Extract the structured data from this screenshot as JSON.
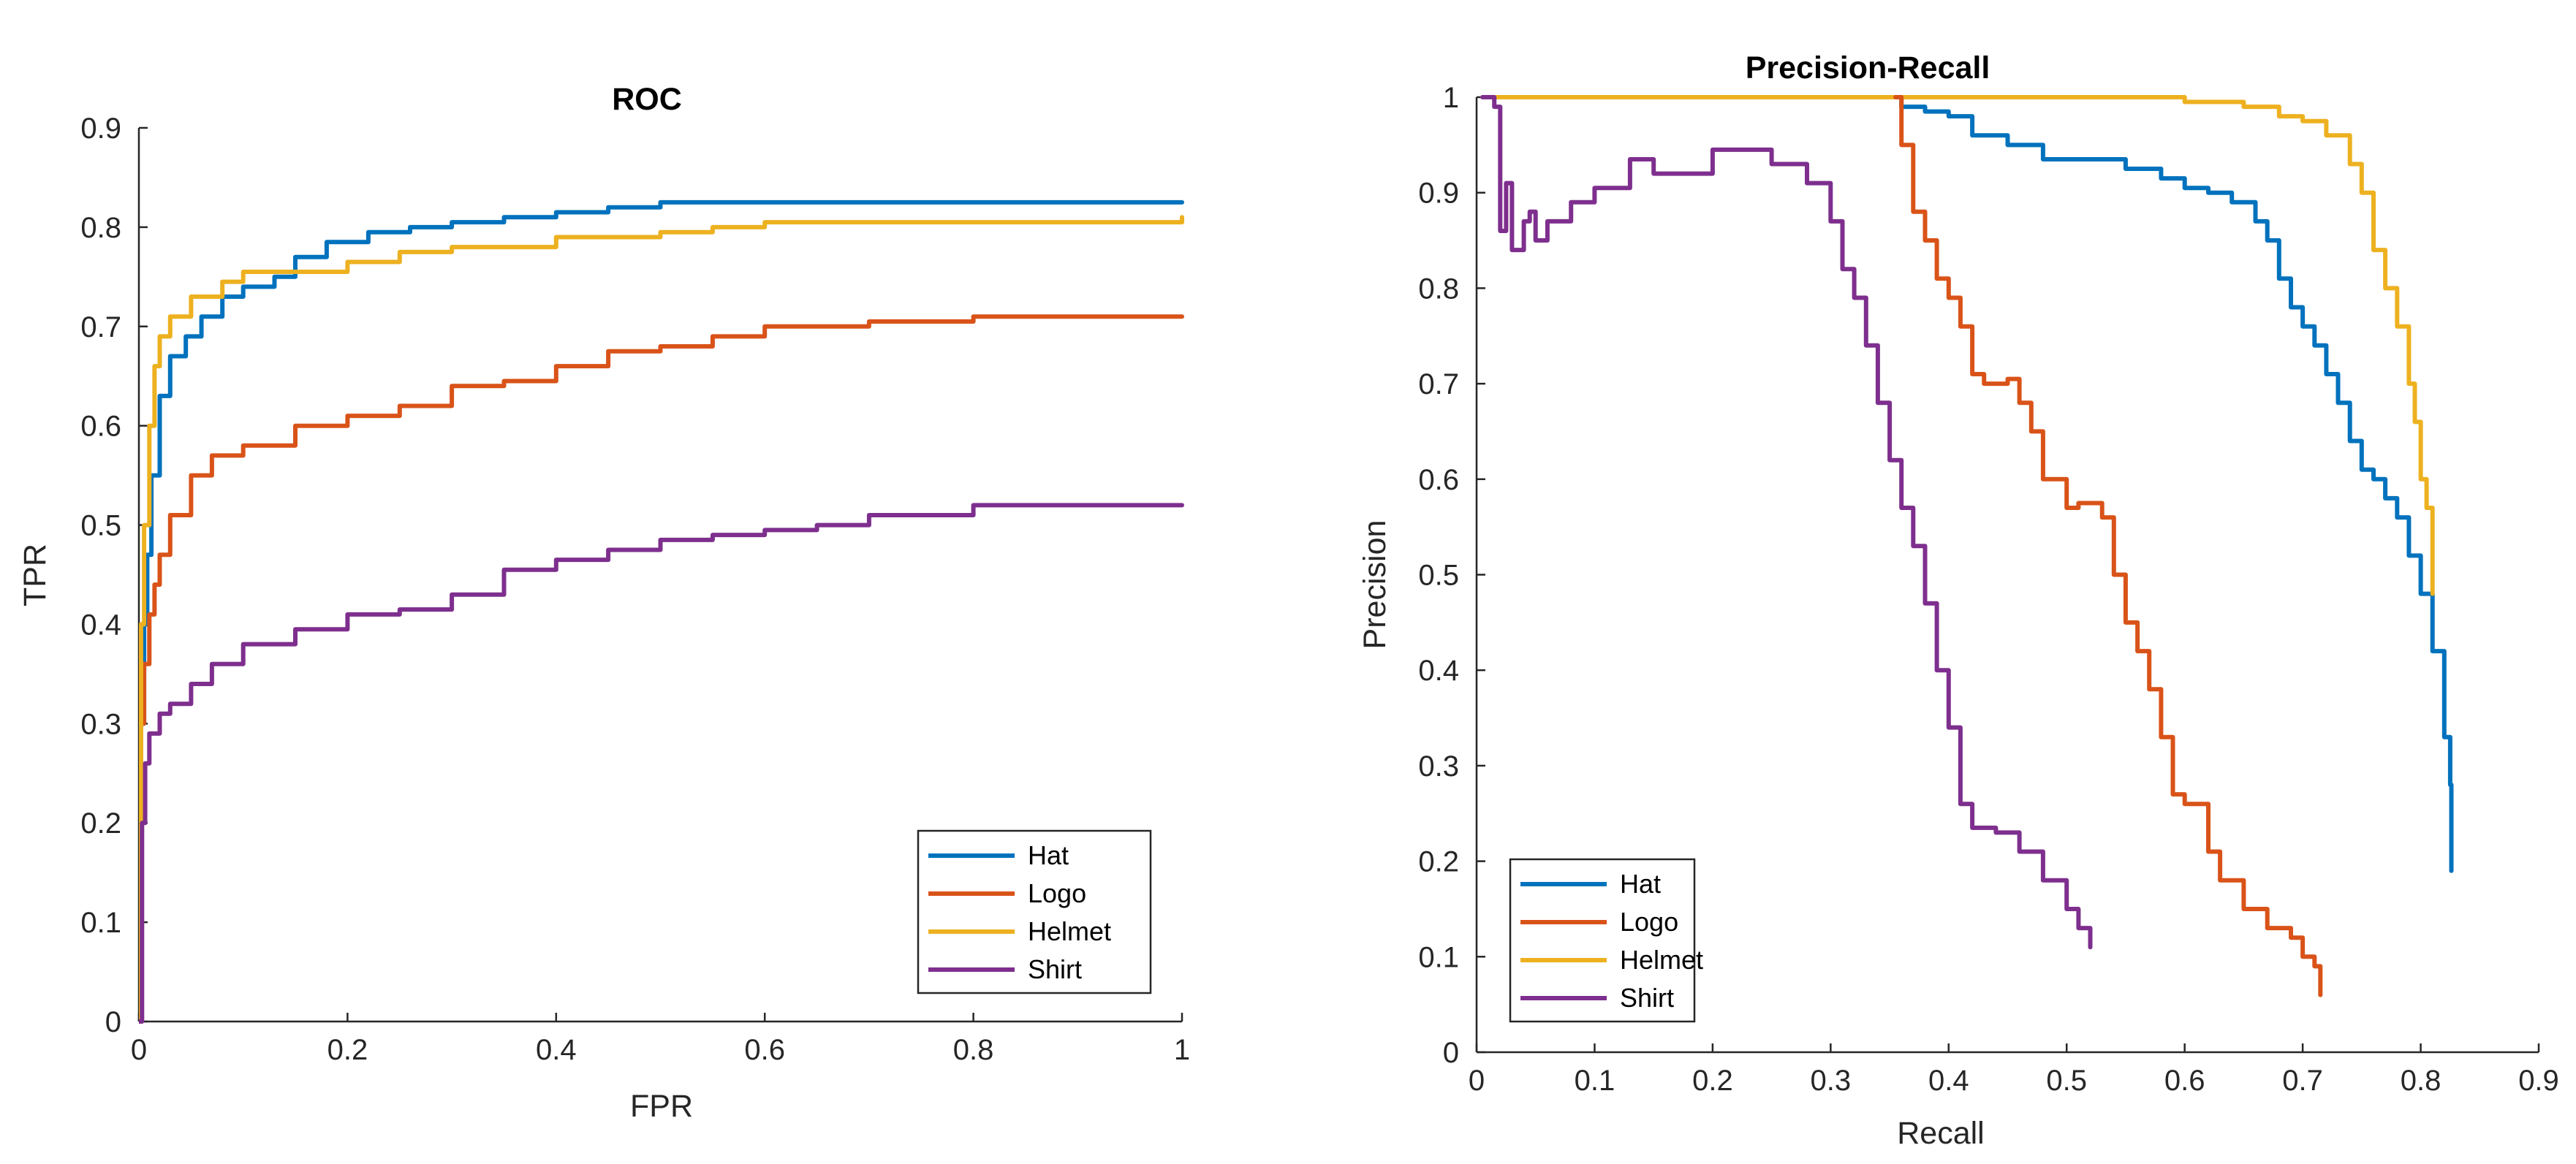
{
  "chart_data": [
    {
      "type": "line",
      "title": "ROC",
      "xlabel": "FPR",
      "ylabel": "TPR",
      "xlim": [
        0,
        1
      ],
      "ylim": [
        0,
        0.9
      ],
      "xticks": [
        0,
        0.2,
        0.4,
        0.6,
        0.8,
        1
      ],
      "xtick_labels": [
        "0",
        "0.2",
        "0.4",
        "0.6",
        "0.8",
        "1"
      ],
      "yticks": [
        0,
        0.1,
        0.2,
        0.3,
        0.4,
        0.5,
        0.6,
        0.7,
        0.8,
        0.9
      ],
      "ytick_labels": [
        "0",
        "0.1",
        "0.2",
        "0.3",
        "0.4",
        "0.5",
        "0.6",
        "0.7",
        "0.8",
        "0.9"
      ],
      "legend_position": "bottom-right",
      "grid": false,
      "series": [
        {
          "name": "Hat",
          "color": "#0072BD",
          "x": [
            0,
            0.002,
            0.005,
            0.008,
            0.012,
            0.02,
            0.03,
            0.045,
            0.06,
            0.08,
            0.1,
            0.13,
            0.15,
            0.18,
            0.22,
            0.26,
            0.3,
            0.35,
            0.4,
            0.45,
            0.5,
            0.6,
            0.7,
            0.8,
            0.9,
            1.0
          ],
          "y": [
            0,
            0.3,
            0.4,
            0.47,
            0.55,
            0.63,
            0.67,
            0.69,
            0.71,
            0.73,
            0.74,
            0.75,
            0.77,
            0.785,
            0.795,
            0.8,
            0.805,
            0.81,
            0.815,
            0.82,
            0.825,
            0.825,
            0.825,
            0.825,
            0.825,
            0.825
          ]
        },
        {
          "name": "Logo",
          "color": "#D95319",
          "x": [
            0,
            0.002,
            0.005,
            0.01,
            0.015,
            0.02,
            0.03,
            0.05,
            0.07,
            0.1,
            0.15,
            0.2,
            0.25,
            0.3,
            0.35,
            0.4,
            0.45,
            0.5,
            0.55,
            0.6,
            0.7,
            0.8,
            0.9,
            1.0
          ],
          "y": [
            0,
            0.3,
            0.36,
            0.41,
            0.44,
            0.47,
            0.51,
            0.55,
            0.57,
            0.58,
            0.6,
            0.61,
            0.62,
            0.64,
            0.645,
            0.66,
            0.675,
            0.68,
            0.69,
            0.7,
            0.705,
            0.71,
            0.71,
            0.71
          ]
        },
        {
          "name": "Helmet",
          "color": "#EDB120",
          "x": [
            0,
            0.002,
            0.005,
            0.01,
            0.015,
            0.02,
            0.03,
            0.05,
            0.08,
            0.1,
            0.15,
            0.2,
            0.25,
            0.3,
            0.4,
            0.5,
            0.55,
            0.6,
            0.7,
            0.8,
            0.9,
            1.0
          ],
          "y": [
            0,
            0.4,
            0.5,
            0.6,
            0.66,
            0.69,
            0.71,
            0.73,
            0.745,
            0.755,
            0.755,
            0.765,
            0.775,
            0.78,
            0.79,
            0.795,
            0.8,
            0.805,
            0.805,
            0.805,
            0.805,
            0.81
          ]
        },
        {
          "name": "Shirt",
          "color": "#7E2F8E",
          "x": [
            0,
            0.003,
            0.006,
            0.01,
            0.02,
            0.03,
            0.05,
            0.07,
            0.1,
            0.15,
            0.2,
            0.25,
            0.3,
            0.35,
            0.4,
            0.45,
            0.5,
            0.55,
            0.6,
            0.65,
            0.7,
            0.8,
            0.9,
            1.0
          ],
          "y": [
            0,
            0.2,
            0.26,
            0.29,
            0.31,
            0.32,
            0.34,
            0.36,
            0.38,
            0.395,
            0.41,
            0.415,
            0.43,
            0.455,
            0.465,
            0.475,
            0.485,
            0.49,
            0.495,
            0.5,
            0.51,
            0.52,
            0.52,
            0.52
          ]
        }
      ]
    },
    {
      "type": "line",
      "title": "Precision-Recall",
      "xlabel": "Recall",
      "ylabel": "Precision",
      "xlim": [
        0,
        0.9
      ],
      "ylim": [
        0,
        1
      ],
      "xticks": [
        0,
        0.1,
        0.2,
        0.3,
        0.4,
        0.5,
        0.6,
        0.7,
        0.8,
        0.9
      ],
      "xtick_labels": [
        "0",
        "0.1",
        "0.2",
        "0.3",
        "0.4",
        "0.5",
        "0.6",
        "0.7",
        "0.8",
        "0.9"
      ],
      "yticks": [
        0,
        0.1,
        0.2,
        0.3,
        0.4,
        0.5,
        0.6,
        0.7,
        0.8,
        0.9,
        1
      ],
      "ytick_labels": [
        "0",
        "0.1",
        "0.2",
        "0.3",
        "0.4",
        "0.5",
        "0.6",
        "0.7",
        "0.8",
        "0.9",
        "1"
      ],
      "legend_position": "bottom-left",
      "grid": false,
      "series": [
        {
          "name": "Hat",
          "color": "#0072BD",
          "x": [
            0.33,
            0.36,
            0.38,
            0.4,
            0.42,
            0.45,
            0.48,
            0.5,
            0.52,
            0.55,
            0.58,
            0.6,
            0.62,
            0.64,
            0.66,
            0.67,
            0.68,
            0.69,
            0.7,
            0.71,
            0.72,
            0.73,
            0.74,
            0.75,
            0.76,
            0.77,
            0.78,
            0.79,
            0.8,
            0.81,
            0.82,
            0.825,
            0.826
          ],
          "y": [
            1.0,
            0.99,
            0.985,
            0.98,
            0.96,
            0.95,
            0.935,
            0.935,
            0.935,
            0.925,
            0.915,
            0.905,
            0.9,
            0.89,
            0.87,
            0.85,
            0.81,
            0.78,
            0.76,
            0.74,
            0.71,
            0.68,
            0.64,
            0.61,
            0.6,
            0.58,
            0.56,
            0.52,
            0.48,
            0.42,
            0.33,
            0.28,
            0.19
          ]
        },
        {
          "name": "Helmet",
          "color": "#EDB120",
          "x": [
            0.005,
            0.1,
            0.2,
            0.3,
            0.4,
            0.5,
            0.6,
            0.65,
            0.68,
            0.7,
            0.72,
            0.74,
            0.75,
            0.76,
            0.77,
            0.78,
            0.79,
            0.795,
            0.8,
            0.805,
            0.81
          ],
          "y": [
            1.0,
            1.0,
            1.0,
            1.0,
            1.0,
            1.0,
            0.995,
            0.99,
            0.98,
            0.975,
            0.96,
            0.93,
            0.9,
            0.84,
            0.8,
            0.76,
            0.7,
            0.66,
            0.6,
            0.57,
            0.48
          ]
        },
        {
          "name": "Logo",
          "color": "#D95319",
          "x": [
            0.355,
            0.36,
            0.37,
            0.38,
            0.39,
            0.4,
            0.41,
            0.42,
            0.43,
            0.45,
            0.46,
            0.47,
            0.48,
            0.5,
            0.51,
            0.53,
            0.54,
            0.55,
            0.56,
            0.57,
            0.58,
            0.59,
            0.6,
            0.62,
            0.63,
            0.65,
            0.67,
            0.69,
            0.7,
            0.71,
            0.715
          ],
          "y": [
            1.0,
            0.95,
            0.88,
            0.85,
            0.81,
            0.79,
            0.76,
            0.71,
            0.7,
            0.705,
            0.68,
            0.65,
            0.6,
            0.57,
            0.575,
            0.56,
            0.5,
            0.45,
            0.42,
            0.38,
            0.33,
            0.27,
            0.26,
            0.21,
            0.18,
            0.15,
            0.13,
            0.12,
            0.1,
            0.09,
            0.06
          ]
        },
        {
          "name": "Shirt",
          "color": "#7E2F8E",
          "x": [
            0.005,
            0.015,
            0.02,
            0.025,
            0.03,
            0.04,
            0.045,
            0.05,
            0.06,
            0.08,
            0.1,
            0.13,
            0.15,
            0.2,
            0.25,
            0.28,
            0.3,
            0.31,
            0.32,
            0.33,
            0.34,
            0.35,
            0.36,
            0.37,
            0.38,
            0.39,
            0.4,
            0.41,
            0.42,
            0.44,
            0.46,
            0.48,
            0.5,
            0.51,
            0.52
          ],
          "y": [
            1.0,
            0.99,
            0.86,
            0.91,
            0.84,
            0.87,
            0.88,
            0.85,
            0.87,
            0.89,
            0.905,
            0.935,
            0.92,
            0.945,
            0.93,
            0.91,
            0.87,
            0.82,
            0.79,
            0.74,
            0.68,
            0.62,
            0.57,
            0.53,
            0.47,
            0.4,
            0.34,
            0.26,
            0.235,
            0.23,
            0.21,
            0.18,
            0.15,
            0.13,
            0.11
          ]
        }
      ]
    }
  ]
}
